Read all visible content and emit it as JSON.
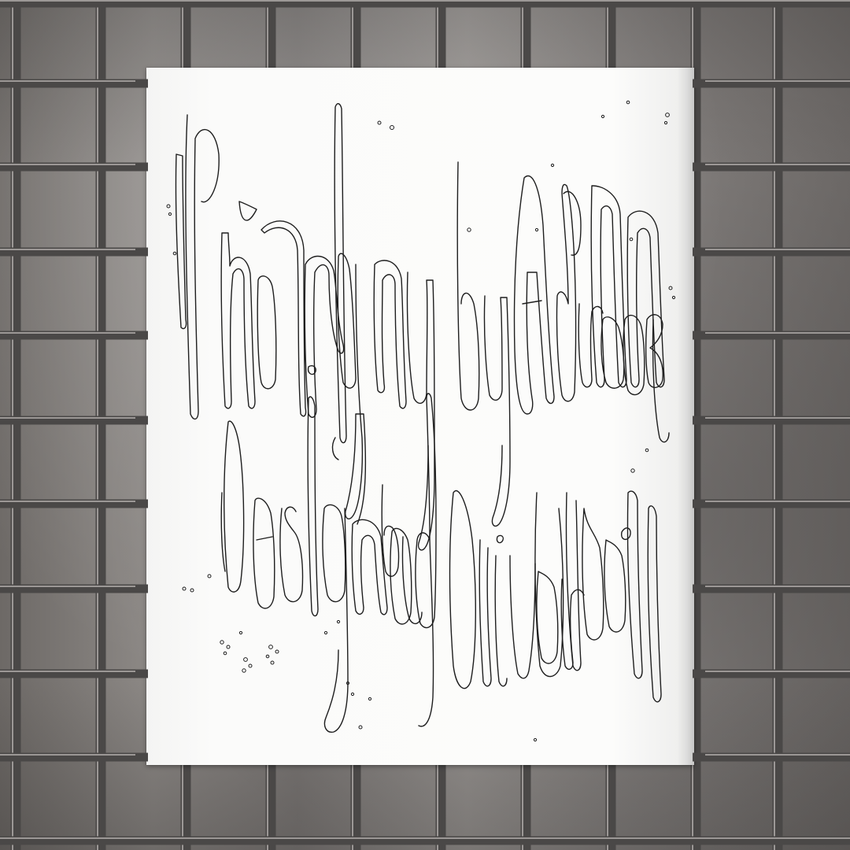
{
  "scene": {
    "description_colors": {
      "grid_metal": "#4a4847",
      "grid_highlight": "#9c9896",
      "paper": "#fbfbfa",
      "ink_outline": "#1e1e1e"
    }
  },
  "poster": {
    "line1": "Photography by Andreas Mandt",
    "line2": "Designed by Oliver Udell",
    "lettering_style": "handwritten-outline"
  }
}
